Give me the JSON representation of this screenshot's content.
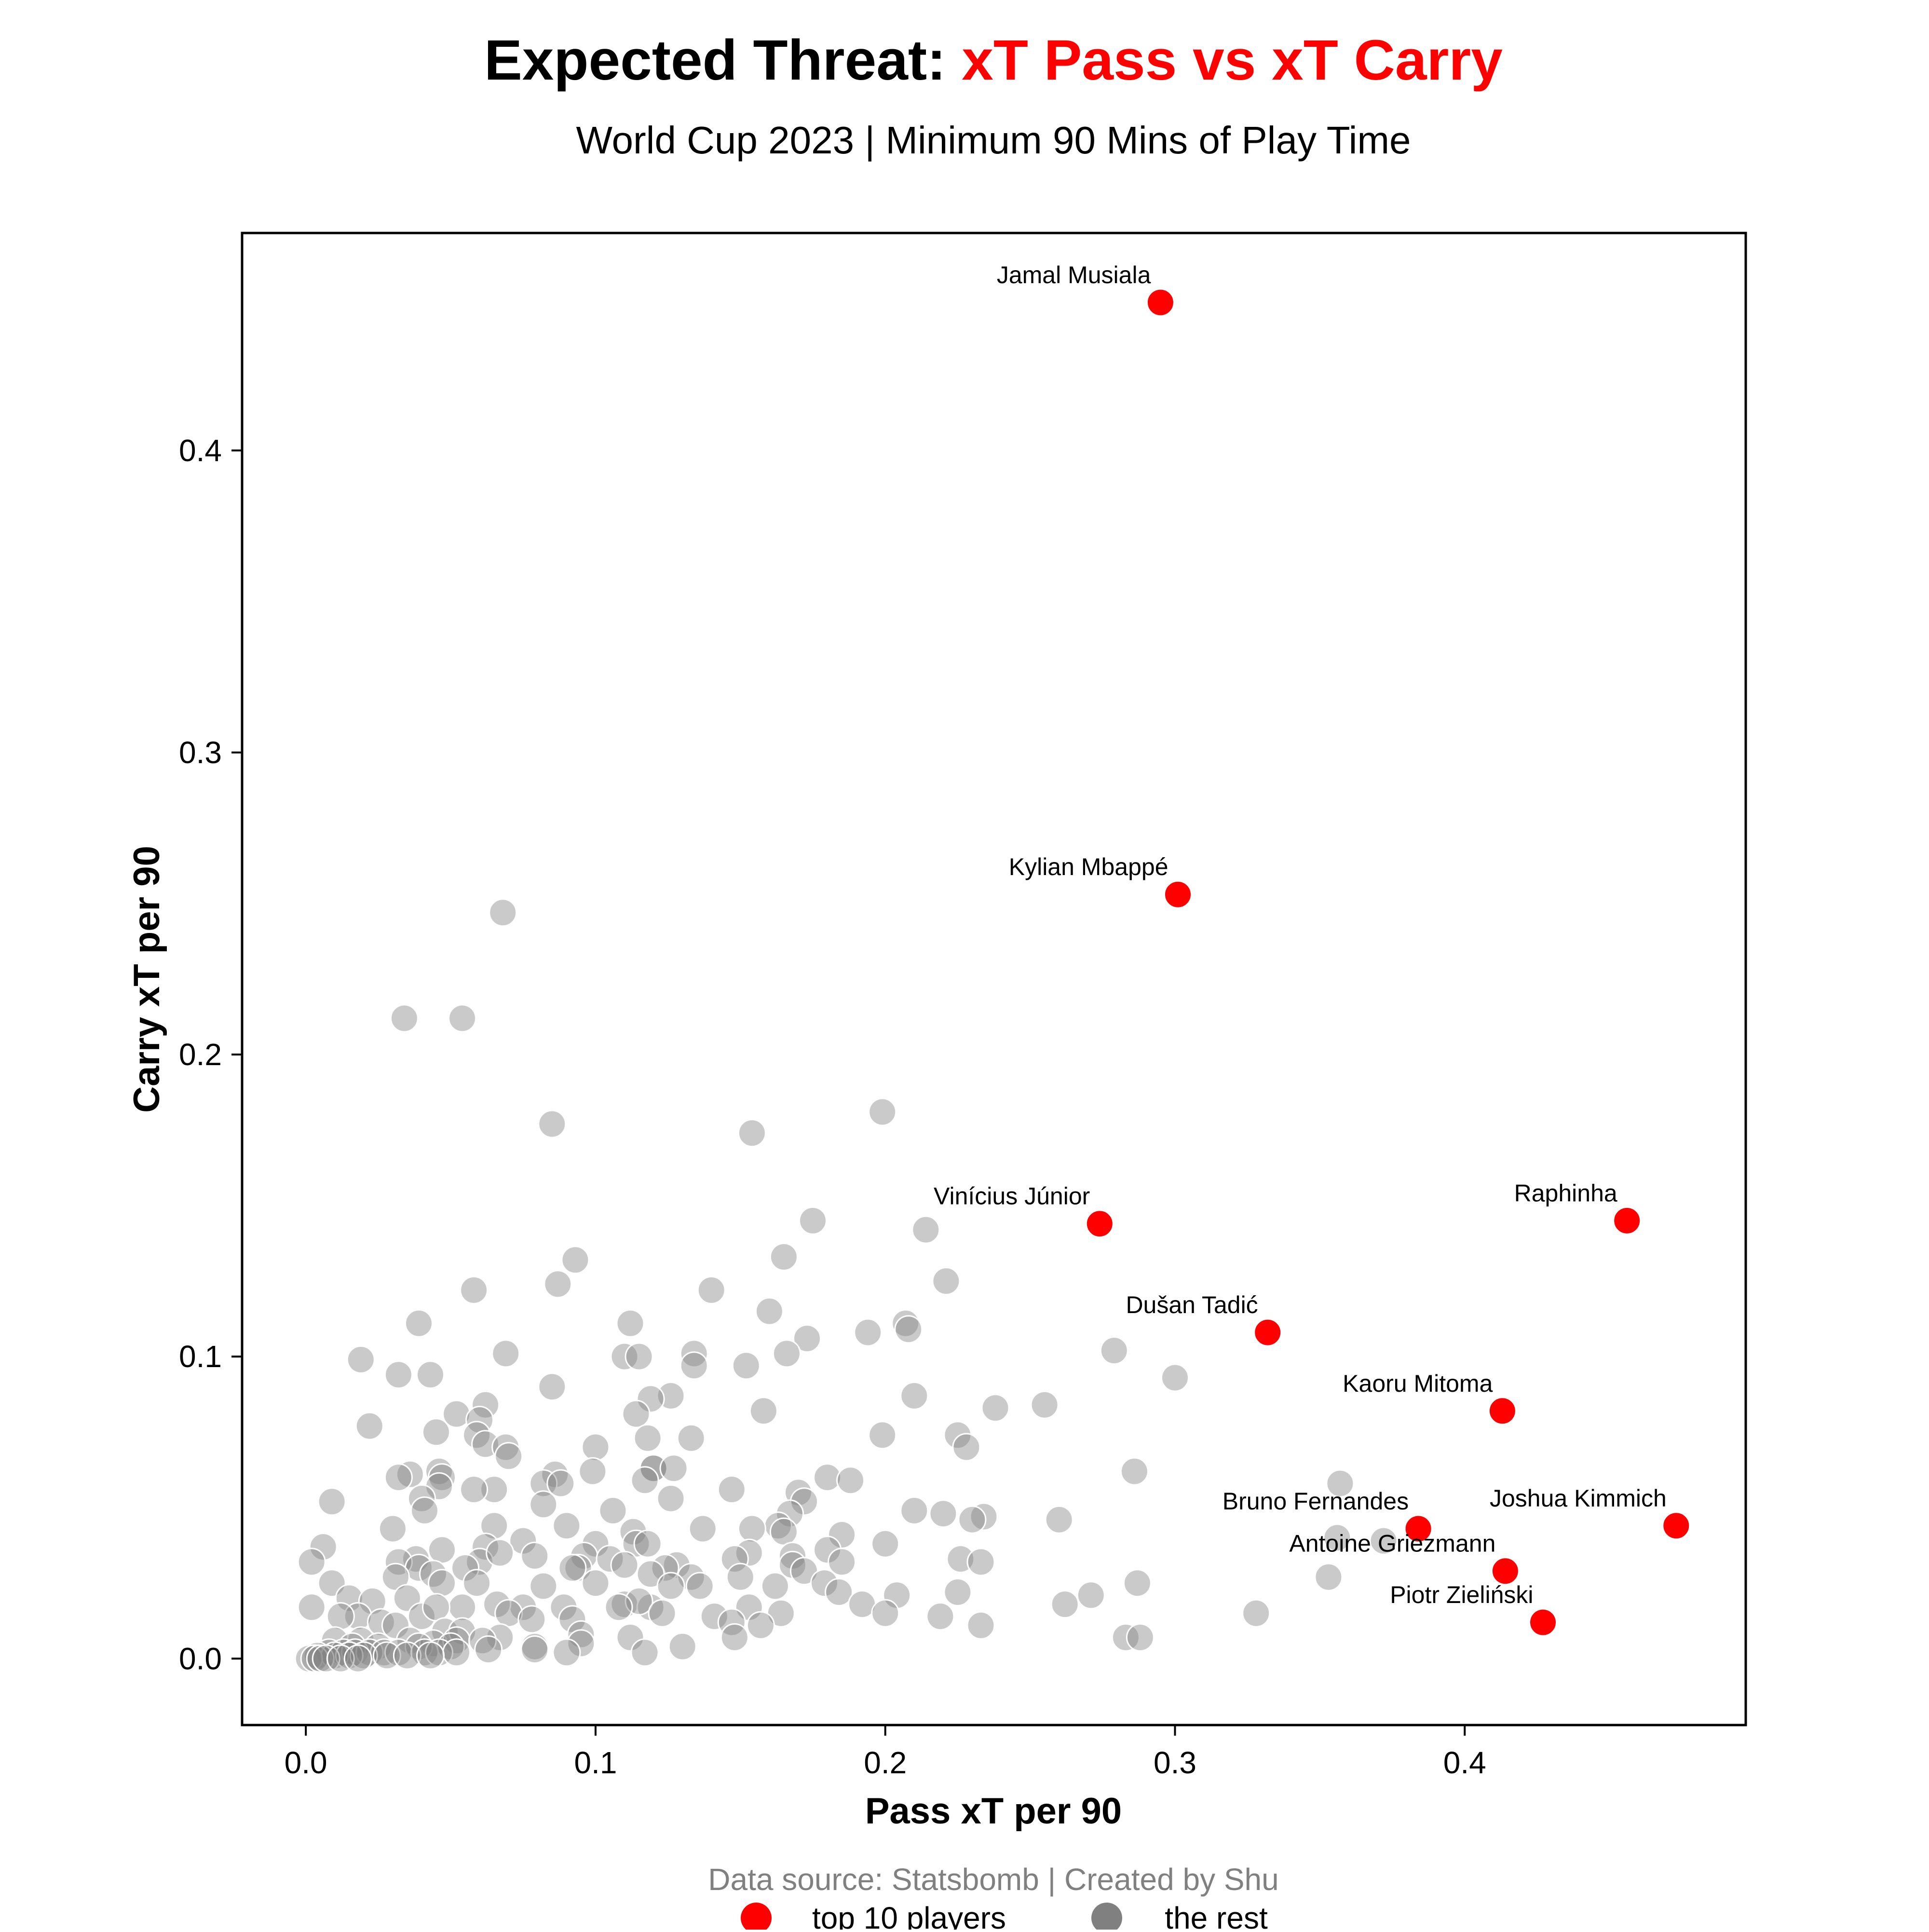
{
  "title": {
    "prefix": "Expected Threat: ",
    "highlight": "xT Pass vs xT Carry",
    "highlight_color": "#ff0000"
  },
  "subtitle": "World Cup 2023 | Minimum 90 Mins of Play Time",
  "footer": "Data source: Statsbomb | Created by Shu",
  "chart_data": {
    "type": "scatter",
    "xlabel": "Pass xT per 90",
    "ylabel": "Carry xT per 90",
    "xlim": [
      -0.022,
      0.497
    ],
    "ylim": [
      -0.022,
      0.472
    ],
    "xticks": [
      0.0,
      0.1,
      0.2,
      0.3,
      0.4
    ],
    "xtick_labels": [
      "0.0",
      "0.1",
      "0.2",
      "0.3",
      "0.4"
    ],
    "yticks": [
      0.0,
      0.1,
      0.2,
      0.3,
      0.4
    ],
    "ytick_labels": [
      "0.0",
      "0.1",
      "0.2",
      "0.3",
      "0.4"
    ],
    "grid": false,
    "legend_placement": "bottom-center",
    "series": [
      {
        "name": "top 10 players",
        "color": "#ff0000",
        "points": [
          {
            "label": "Jamal Musiala",
            "x": 0.295,
            "y": 0.449
          },
          {
            "label": "Kylian Mbappé",
            "x": 0.301,
            "y": 0.253
          },
          {
            "label": "Vinícius Júnior",
            "x": 0.274,
            "y": 0.144
          },
          {
            "label": "Raphinha",
            "x": 0.456,
            "y": 0.145
          },
          {
            "label": "Dušan Tadić",
            "x": 0.332,
            "y": 0.108
          },
          {
            "label": "Kaoru Mitoma",
            "x": 0.413,
            "y": 0.082
          },
          {
            "label": "Bruno Fernandes",
            "x": 0.384,
            "y": 0.043
          },
          {
            "label": "Joshua Kimmich",
            "x": 0.473,
            "y": 0.044
          },
          {
            "label": "Antoine Griezmann",
            "x": 0.414,
            "y": 0.029
          },
          {
            "label": "Piotr Zieliński",
            "x": 0.427,
            "y": 0.012
          }
        ]
      },
      {
        "name": "the rest",
        "color": "#808080",
        "points": [
          [
            0.068,
            0.247
          ],
          [
            0.034,
            0.212
          ],
          [
            0.054,
            0.212
          ],
          [
            0.199,
            0.181
          ],
          [
            0.085,
            0.177
          ],
          [
            0.154,
            0.174
          ],
          [
            0.175,
            0.145
          ],
          [
            0.214,
            0.142
          ],
          [
            0.165,
            0.133
          ],
          [
            0.093,
            0.132
          ],
          [
            0.221,
            0.125
          ],
          [
            0.087,
            0.124
          ],
          [
            0.14,
            0.122
          ],
          [
            0.058,
            0.122
          ],
          [
            0.16,
            0.115
          ],
          [
            0.112,
            0.111
          ],
          [
            0.039,
            0.111
          ],
          [
            0.207,
            0.111
          ],
          [
            0.208,
            0.109
          ],
          [
            0.194,
            0.108
          ],
          [
            0.173,
            0.106
          ],
          [
            0.279,
            0.102
          ],
          [
            0.069,
            0.101
          ],
          [
            0.11,
            0.1
          ],
          [
            0.115,
            0.1
          ],
          [
            0.134,
            0.101
          ],
          [
            0.166,
            0.101
          ],
          [
            0.019,
            0.099
          ],
          [
            0.134,
            0.097
          ],
          [
            0.152,
            0.097
          ],
          [
            0.032,
            0.094
          ],
          [
            0.043,
            0.094
          ],
          [
            0.3,
            0.093
          ],
          [
            0.085,
            0.09
          ],
          [
            0.126,
            0.087
          ],
          [
            0.21,
            0.087
          ],
          [
            0.119,
            0.086
          ],
          [
            0.062,
            0.084
          ],
          [
            0.255,
            0.084
          ],
          [
            0.238,
            0.083
          ],
          [
            0.158,
            0.082
          ],
          [
            0.052,
            0.081
          ],
          [
            0.114,
            0.081
          ],
          [
            0.06,
            0.079
          ],
          [
            0.022,
            0.077
          ],
          [
            0.045,
            0.075
          ],
          [
            0.059,
            0.074
          ],
          [
            0.118,
            0.073
          ],
          [
            0.133,
            0.073
          ],
          [
            0.199,
            0.074
          ],
          [
            0.225,
            0.074
          ],
          [
            0.062,
            0.071
          ],
          [
            0.1,
            0.07
          ],
          [
            0.069,
            0.07
          ],
          [
            0.228,
            0.07
          ],
          [
            0.07,
            0.067
          ],
          [
            0.12,
            0.063
          ],
          [
            0.036,
            0.061
          ],
          [
            0.086,
            0.061
          ],
          [
            0.046,
            0.062
          ],
          [
            0.099,
            0.062
          ],
          [
            0.12,
            0.063
          ],
          [
            0.127,
            0.063
          ],
          [
            0.047,
            0.06
          ],
          [
            0.032,
            0.06
          ],
          [
            0.082,
            0.058
          ],
          [
            0.18,
            0.06
          ],
          [
            0.188,
            0.059
          ],
          [
            0.117,
            0.059
          ],
          [
            0.286,
            0.062
          ],
          [
            0.357,
            0.058
          ],
          [
            0.046,
            0.057
          ],
          [
            0.088,
            0.058
          ],
          [
            0.065,
            0.056
          ],
          [
            0.058,
            0.056
          ],
          [
            0.147,
            0.056
          ],
          [
            0.17,
            0.055
          ],
          [
            0.126,
            0.053
          ],
          [
            0.04,
            0.053
          ],
          [
            0.172,
            0.052
          ],
          [
            0.082,
            0.051
          ],
          [
            0.009,
            0.052
          ],
          [
            0.041,
            0.049
          ],
          [
            0.106,
            0.049
          ],
          [
            0.21,
            0.049
          ],
          [
            0.22,
            0.048
          ],
          [
            0.167,
            0.048
          ],
          [
            0.234,
            0.047
          ],
          [
            0.23,
            0.046
          ],
          [
            0.26,
            0.046
          ],
          [
            0.137,
            0.043
          ],
          [
            0.163,
            0.044
          ],
          [
            0.03,
            0.043
          ],
          [
            0.065,
            0.044
          ],
          [
            0.09,
            0.044
          ],
          [
            0.113,
            0.042
          ],
          [
            0.165,
            0.042
          ],
          [
            0.154,
            0.043
          ],
          [
            0.185,
            0.041
          ],
          [
            0.356,
            0.04
          ],
          [
            0.372,
            0.039
          ],
          [
            0.114,
            0.038
          ],
          [
            0.118,
            0.038
          ],
          [
            0.075,
            0.039
          ],
          [
            0.1,
            0.038
          ],
          [
            0.18,
            0.036
          ],
          [
            0.2,
            0.038
          ],
          [
            0.062,
            0.037
          ],
          [
            0.047,
            0.036
          ],
          [
            0.153,
            0.035
          ],
          [
            0.168,
            0.034
          ],
          [
            0.079,
            0.034
          ],
          [
            0.096,
            0.034
          ],
          [
            0.105,
            0.033
          ],
          [
            0.06,
            0.032
          ],
          [
            0.094,
            0.03
          ],
          [
            0.148,
            0.033
          ],
          [
            0.038,
            0.033
          ],
          [
            0.006,
            0.037
          ],
          [
            0.002,
            0.032
          ],
          [
            0.032,
            0.032
          ],
          [
            0.128,
            0.031
          ],
          [
            0.124,
            0.03
          ],
          [
            0.055,
            0.03
          ],
          [
            0.039,
            0.03
          ],
          [
            0.185,
            0.032
          ],
          [
            0.226,
            0.033
          ],
          [
            0.233,
            0.032
          ],
          [
            0.133,
            0.027
          ],
          [
            0.11,
            0.031
          ],
          [
            0.168,
            0.031
          ],
          [
            0.15,
            0.027
          ],
          [
            0.031,
            0.027
          ],
          [
            0.092,
            0.03
          ],
          [
            0.067,
            0.035
          ],
          [
            0.044,
            0.028
          ],
          [
            0.172,
            0.029
          ],
          [
            0.353,
            0.027
          ],
          [
            0.009,
            0.025
          ],
          [
            0.059,
            0.025
          ],
          [
            0.119,
            0.028
          ],
          [
            0.1,
            0.025
          ],
          [
            0.126,
            0.024
          ],
          [
            0.179,
            0.025
          ],
          [
            0.162,
            0.024
          ],
          [
            0.287,
            0.025
          ],
          [
            0.082,
            0.024
          ],
          [
            0.047,
            0.025
          ],
          [
            0.136,
            0.024
          ],
          [
            0.225,
            0.022
          ],
          [
            0.184,
            0.022
          ],
          [
            0.035,
            0.02
          ],
          [
            0.015,
            0.02
          ],
          [
            0.204,
            0.021
          ],
          [
            0.271,
            0.021
          ],
          [
            0.262,
            0.018
          ],
          [
            0.023,
            0.019
          ],
          [
            0.11,
            0.018
          ],
          [
            0.119,
            0.017
          ],
          [
            0.115,
            0.019
          ],
          [
            0.075,
            0.017
          ],
          [
            0.089,
            0.017
          ],
          [
            0.108,
            0.017
          ],
          [
            0.066,
            0.018
          ],
          [
            0.054,
            0.017
          ],
          [
            0.002,
            0.017
          ],
          [
            0.123,
            0.015
          ],
          [
            0.153,
            0.017
          ],
          [
            0.164,
            0.015
          ],
          [
            0.192,
            0.018
          ],
          [
            0.2,
            0.015
          ],
          [
            0.219,
            0.014
          ],
          [
            0.328,
            0.015
          ],
          [
            0.018,
            0.014
          ],
          [
            0.012,
            0.014
          ],
          [
            0.04,
            0.014
          ],
          [
            0.045,
            0.017
          ],
          [
            0.092,
            0.013
          ],
          [
            0.07,
            0.015
          ],
          [
            0.078,
            0.013
          ],
          [
            0.141,
            0.014
          ],
          [
            0.147,
            0.012
          ],
          [
            0.157,
            0.011
          ],
          [
            0.233,
            0.011
          ],
          [
            0.026,
            0.012
          ],
          [
            0.031,
            0.011
          ],
          [
            0.048,
            0.009
          ],
          [
            0.054,
            0.009
          ],
          [
            0.067,
            0.007
          ],
          [
            0.095,
            0.008
          ],
          [
            0.112,
            0.007
          ],
          [
            0.283,
            0.007
          ],
          [
            0.288,
            0.007
          ],
          [
            0.148,
            0.007
          ],
          [
            0.01,
            0.006
          ],
          [
            0.019,
            0.006
          ],
          [
            0.036,
            0.006
          ],
          [
            0.044,
            0.005
          ],
          [
            0.052,
            0.006
          ],
          [
            0.061,
            0.006
          ],
          [
            0.079,
            0.004
          ],
          [
            0.095,
            0.005
          ],
          [
            0.13,
            0.004
          ],
          [
            0.016,
            0.004
          ],
          [
            0.025,
            0.004
          ],
          [
            0.039,
            0.004
          ],
          [
            0.05,
            0.004
          ],
          [
            0.063,
            0.003
          ],
          [
            0.079,
            0.003
          ],
          [
            0.09,
            0.002
          ],
          [
            0.117,
            0.002
          ],
          [
            0.008,
            0.002
          ],
          [
            0.013,
            0.002
          ],
          [
            0.017,
            0.002
          ],
          [
            0.022,
            0.002
          ],
          [
            0.027,
            0.002
          ],
          [
            0.032,
            0.002
          ],
          [
            0.041,
            0.002
          ],
          [
            0.046,
            0.002
          ],
          [
            0.052,
            0.002
          ],
          [
            0.004,
            0.001
          ],
          [
            0.01,
            0.001
          ],
          [
            0.015,
            0.001
          ],
          [
            0.02,
            0.001
          ],
          [
            0.028,
            0.001
          ],
          [
            0.035,
            0.001
          ],
          [
            0.043,
            0.001
          ],
          [
            0.001,
            0.0
          ],
          [
            0.003,
            0.0
          ],
          [
            0.005,
            0.0
          ],
          [
            0.007,
            0.0
          ],
          [
            0.012,
            0.0
          ],
          [
            0.018,
            0.0
          ]
        ]
      }
    ]
  }
}
